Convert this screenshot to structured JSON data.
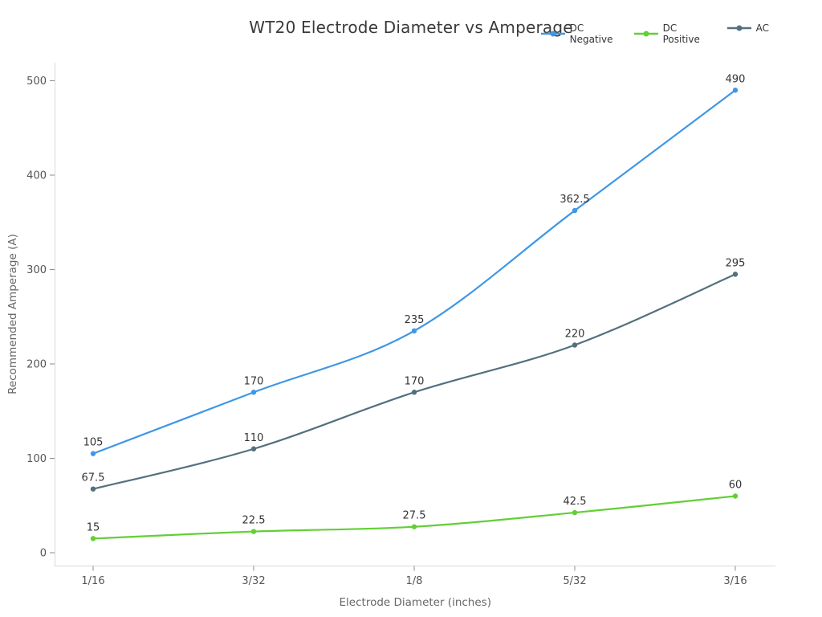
{
  "chart_data": {
    "type": "line",
    "title": "WT20 Electrode Diameter vs Amperage",
    "xlabel": "Electrode Diameter (inches)",
    "ylabel": "Recommended Amperage (A)",
    "categories": [
      "1/16",
      "3/32",
      "1/8",
      "5/32",
      "3/16"
    ],
    "series": [
      {
        "name": "DC Negative",
        "color": "#3f97e6",
        "values": [
          105,
          170,
          235,
          362.5,
          490
        ]
      },
      {
        "name": "DC Positive",
        "color": "#62cf35",
        "values": [
          15,
          22.5,
          27.5,
          42.5,
          60
        ]
      },
      {
        "name": "AC",
        "color": "#53707e",
        "values": [
          67.5,
          110,
          170,
          220,
          295
        ]
      }
    ],
    "ylim": [
      0,
      500
    ],
    "yticks": [
      0,
      100,
      200,
      300,
      400,
      500
    ],
    "grid": false,
    "legend_position": "top-right",
    "point_labels": true,
    "colors": {
      "title_text": "#3a3a3a",
      "axis_label_text": "#666666",
      "tick_label_text": "#555555",
      "point_label_text": "#333333",
      "spine": "#d5d8db",
      "tick_mark": "#8a8f94"
    }
  }
}
